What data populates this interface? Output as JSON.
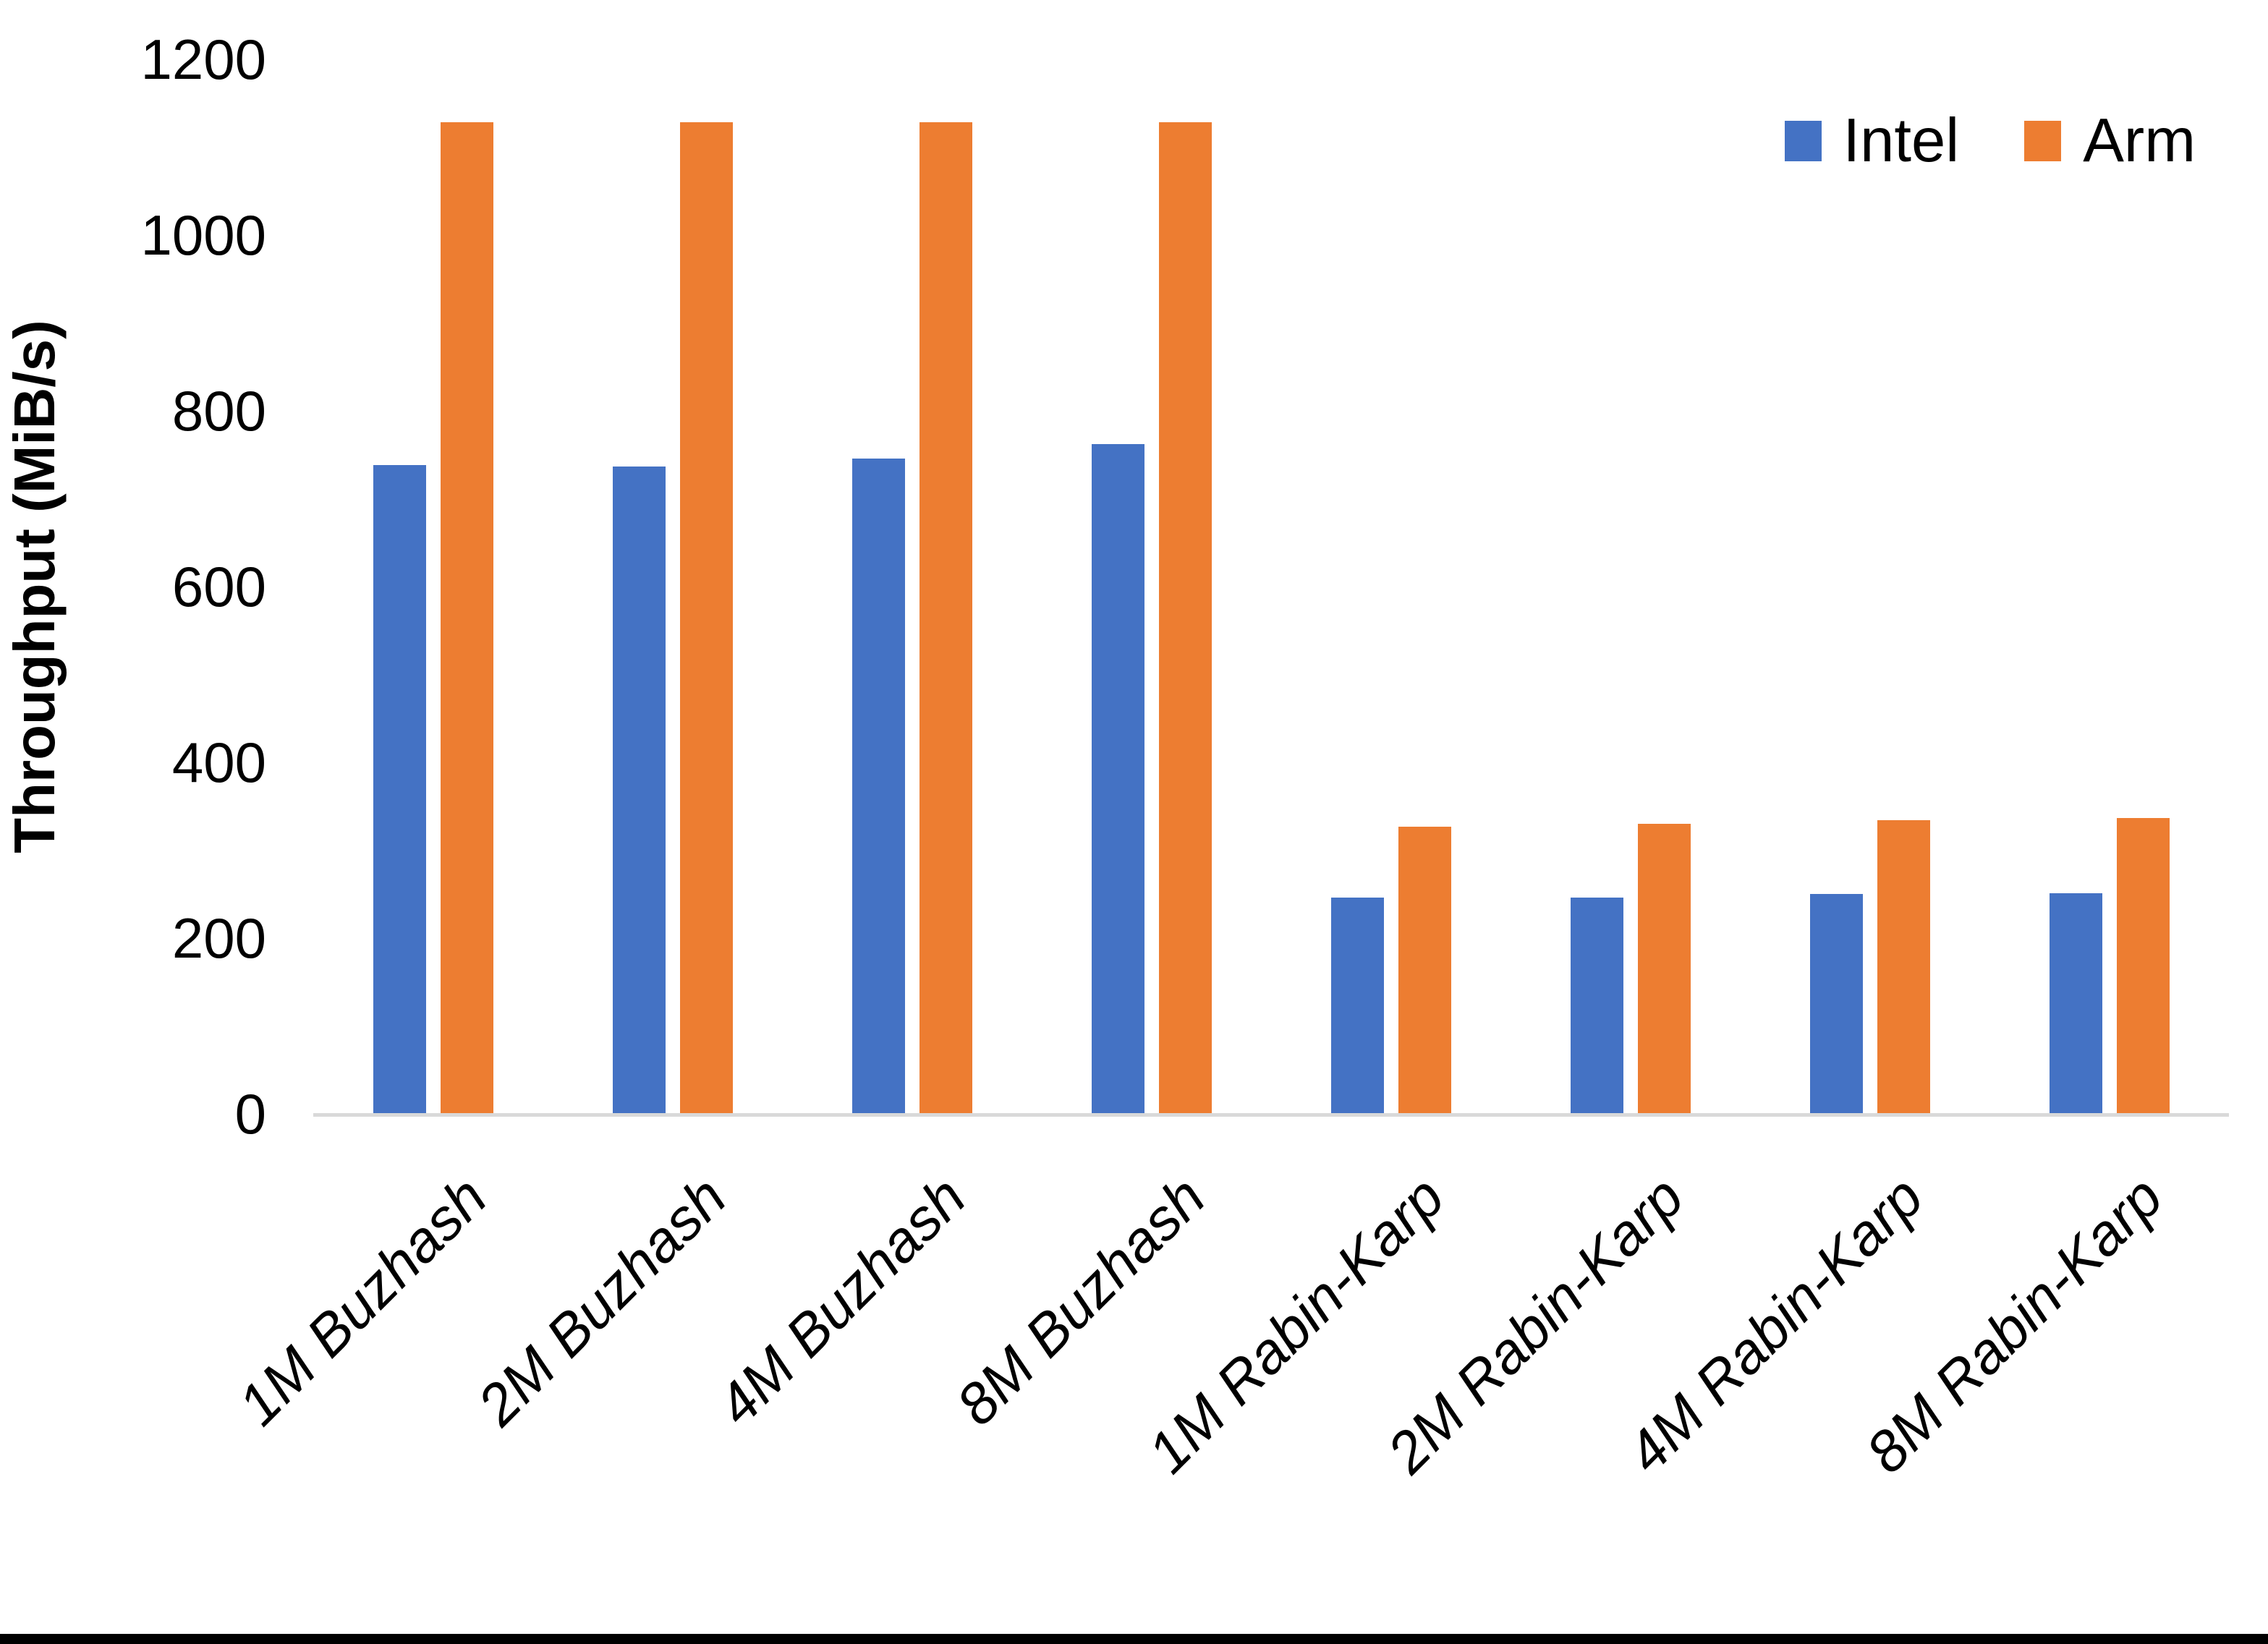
{
  "chart_data": {
    "type": "bar",
    "title": "",
    "xlabel": "",
    "ylabel": "Throughput (MiB/s)",
    "categories": [
      "1M Buzhash",
      "2M Buzhash",
      "4M Buzhash",
      "8M Buzhash",
      "1M Rabin-Karp",
      "2M Rabin-Karp",
      "4M Rabin-Karp",
      "8M Rabin-Karp"
    ],
    "series": [
      {
        "name": "Intel",
        "color": "#4472C4",
        "values": [
          738,
          737,
          746,
          762,
          246,
          246,
          250,
          251
        ]
      },
      {
        "name": "Arm",
        "color": "#ED7D31",
        "values": [
          1128,
          1128,
          1128,
          1128,
          327,
          330,
          334,
          337
        ]
      }
    ],
    "ylim": [
      0,
      1200
    ],
    "yticks": [
      0,
      200,
      400,
      600,
      800,
      1000,
      1200
    ],
    "grid": false,
    "legend_position": "top-right"
  },
  "colors": {
    "axis_line": "#D9D9D9",
    "text": "#000000",
    "bottom_border": "#000000"
  }
}
